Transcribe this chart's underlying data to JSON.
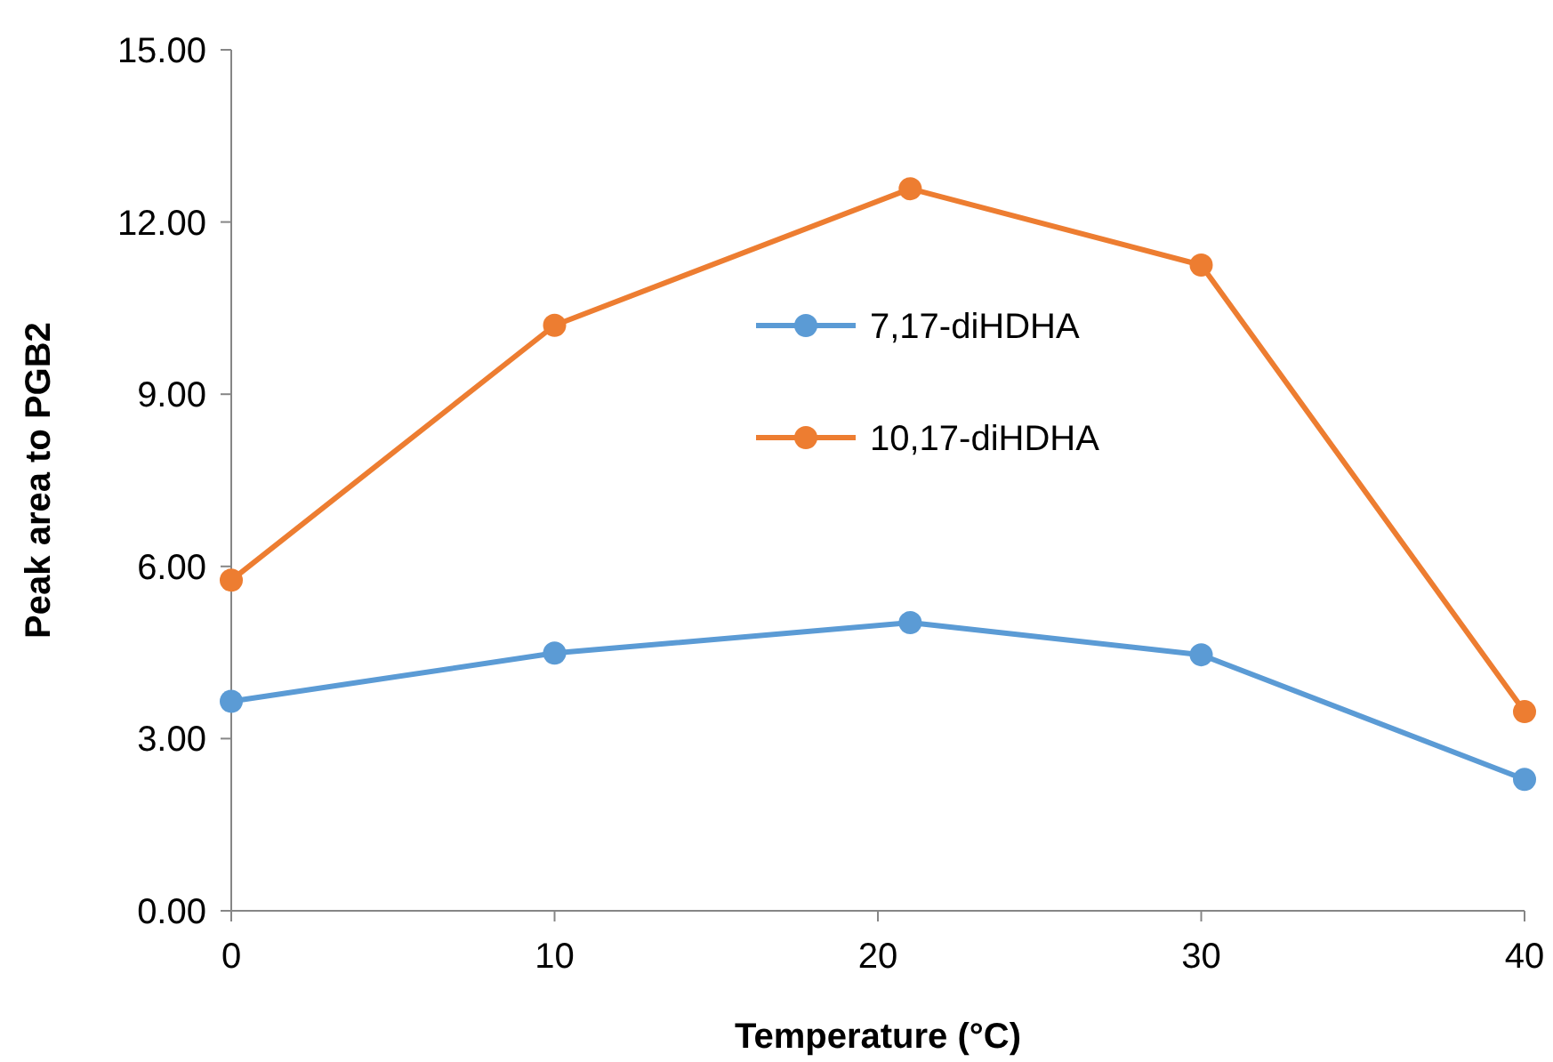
{
  "chart_data": {
    "type": "line",
    "xlabel": "Temperature (°C)",
    "ylabel": "Peak area to PGB2",
    "x": [
      0,
      10,
      21,
      30,
      40
    ],
    "series": [
      {
        "name": "7,17-diHDHA",
        "color": "#5b9bd5",
        "values": [
          3.65,
          4.49,
          5.02,
          4.46,
          2.29
        ]
      },
      {
        "name": "10,17-diHDHA",
        "color": "#ed7d31",
        "values": [
          5.76,
          10.2,
          12.58,
          11.25,
          3.47
        ]
      }
    ],
    "xlim": [
      0,
      40
    ],
    "xticks": [
      0,
      10,
      20,
      30,
      40
    ],
    "ylim": [
      0,
      15
    ],
    "yticks": [
      {
        "value": 0,
        "label": "0.00"
      },
      {
        "value": 3,
        "label": "3.00"
      },
      {
        "value": 6,
        "label": "6.00"
      },
      {
        "value": 9,
        "label": "9.00"
      },
      {
        "value": 12,
        "label": "12.00"
      },
      {
        "value": 15,
        "label": "15.00"
      }
    ],
    "legend": "top",
    "marker": "circle",
    "line_style": "solid",
    "grid": false
  }
}
